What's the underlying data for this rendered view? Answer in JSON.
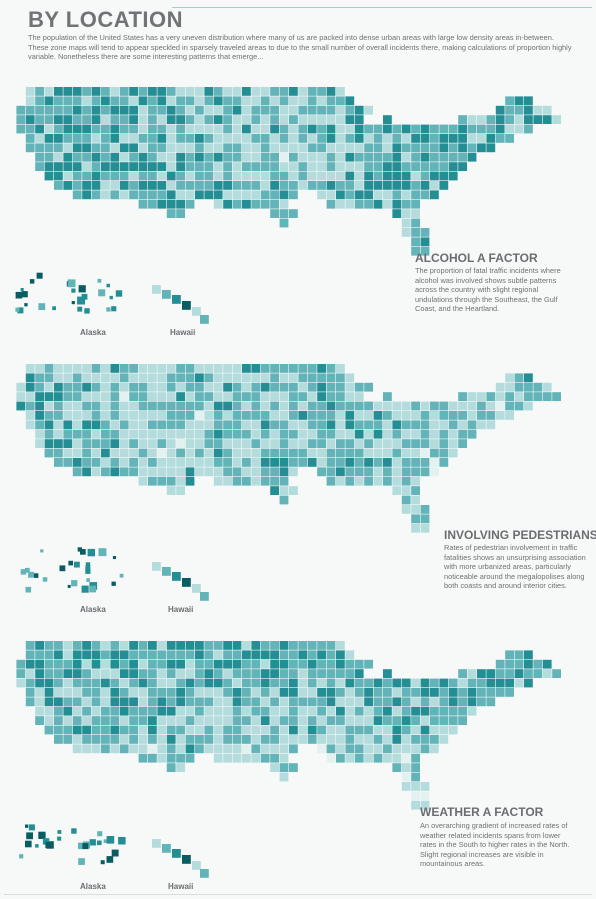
{
  "header": {
    "title": "BY LOCATION",
    "intro": "The population of the United States has a very uneven distribution where many of us are packed into dense urban areas with large low density areas in-between.  These zone maps will tend to appear speckled in sparsely traveled areas to due to the small number of overall incidents there, making calculations of proportion highly variable.  Nonetheless there are some interesting patterns that emerge..."
  },
  "colors": {
    "lightest": "#e3f1f1",
    "light": "#b4dcdd",
    "mid": "#63b4b8",
    "strong": "#248e95",
    "darkest": "#085c62"
  },
  "sections": [
    {
      "id": "alcohol",
      "title": "ALCOHOL A FACTOR",
      "body": "The proportion of fatal traffic incidents where alcohol was involved shows subtle patterns across the country with slight regional undulations through the Southeast, the Gulf Coast, and the Heartland.",
      "alaska_label": "Alaska",
      "hawaii_label": "Hawaii"
    },
    {
      "id": "pedestrians",
      "title": "INVOLVING PEDESTRIANS",
      "body": "Rates of pedestrian involvement in traffic fatalities shows an unsurprising association with more urbanized areas, particularly noticeable around the megalopolises along both coasts and around interior cities.",
      "alaska_label": "Alaska",
      "hawaii_label": "Hawaii"
    },
    {
      "id": "weather",
      "title": "WEATHER A FACTOR",
      "body": "An overarching gradient of increased rates of weather related incidents spans from lower rates in the South to higher rates in the North.  Slight regional increases are visible in mountainous areas.",
      "alaska_label": "Alaska",
      "hawaii_label": "Hawaii"
    }
  ]
}
